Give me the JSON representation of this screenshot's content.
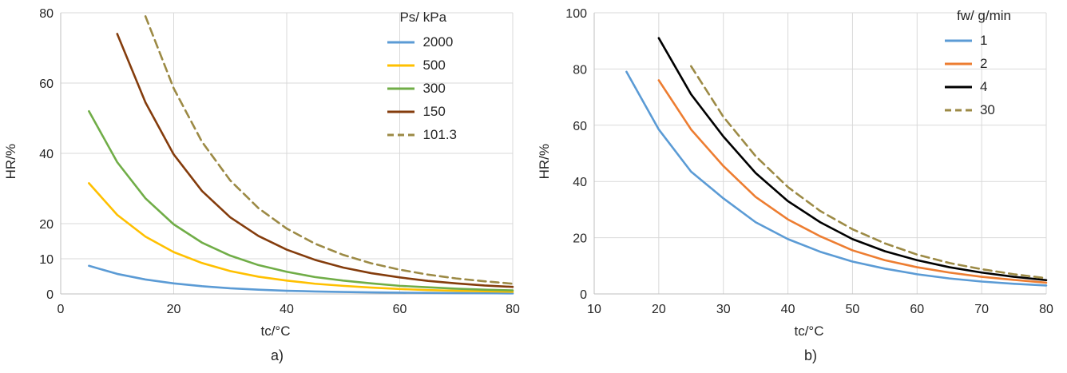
{
  "figure": {
    "background": "#ffffff",
    "text_color": "#262626",
    "axis_color": "#BFBFBF",
    "grid_color": "#D9D9D9"
  },
  "chart_data": [
    {
      "type": "line",
      "caption": "a)",
      "xlabel": "tc/°C",
      "ylabel": "HR/%",
      "xlim": [
        0,
        80
      ],
      "ylim": [
        0,
        80
      ],
      "xticks": [
        0,
        20,
        40,
        60,
        80
      ],
      "yticks": [
        0,
        10,
        20,
        40,
        60,
        80
      ],
      "grid": "on",
      "legend_title": "Ps/ kPa",
      "legend_position": "top-right",
      "series": [
        {
          "name": "2000",
          "color": "#5B9BD5",
          "dash": false,
          "points": [
            [
              5,
              8
            ],
            [
              10,
              5.7
            ],
            [
              15,
              4.1
            ],
            [
              20,
              3
            ],
            [
              25,
              2.2
            ],
            [
              30,
              1.6
            ],
            [
              35,
              1.2
            ],
            [
              40,
              0.9
            ],
            [
              45,
              0.7
            ],
            [
              50,
              0.55
            ],
            [
              55,
              0.45
            ],
            [
              60,
              0.35
            ],
            [
              65,
              0.3
            ],
            [
              70,
              0.25
            ],
            [
              75,
              0.2
            ],
            [
              80,
              0.15
            ]
          ]
        },
        {
          "name": "500",
          "color": "#FFC000",
          "dash": false,
          "points": [
            [
              5,
              31.5
            ],
            [
              10,
              22.5
            ],
            [
              15,
              16.3
            ],
            [
              20,
              11.9
            ],
            [
              25,
              8.8
            ],
            [
              30,
              6.5
            ],
            [
              35,
              4.9
            ],
            [
              40,
              3.8
            ],
            [
              45,
              2.9
            ],
            [
              50,
              2.3
            ],
            [
              55,
              1.8
            ],
            [
              60,
              1.4
            ],
            [
              65,
              1.1
            ],
            [
              70,
              0.9
            ],
            [
              75,
              0.75
            ],
            [
              80,
              0.6
            ]
          ]
        },
        {
          "name": "300",
          "color": "#70AD47",
          "dash": false,
          "points": [
            [
              5,
              52
            ],
            [
              10,
              37.5
            ],
            [
              15,
              27.2
            ],
            [
              20,
              19.8
            ],
            [
              25,
              14.6
            ],
            [
              30,
              10.9
            ],
            [
              35,
              8.2
            ],
            [
              40,
              6.3
            ],
            [
              45,
              4.8
            ],
            [
              50,
              3.8
            ],
            [
              55,
              3
            ],
            [
              60,
              2.3
            ],
            [
              65,
              1.9
            ],
            [
              70,
              1.5
            ],
            [
              75,
              1.2
            ],
            [
              80,
              1
            ]
          ]
        },
        {
          "name": "150",
          "color": "#843C0C",
          "dash": false,
          "points": [
            [
              10,
              74
            ],
            [
              15,
              54.5
            ],
            [
              20,
              39.7
            ],
            [
              25,
              29.3
            ],
            [
              30,
              21.8
            ],
            [
              35,
              16.5
            ],
            [
              40,
              12.6
            ],
            [
              45,
              9.7
            ],
            [
              50,
              7.5
            ],
            [
              55,
              5.9
            ],
            [
              60,
              4.7
            ],
            [
              65,
              3.7
            ],
            [
              70,
              3
            ],
            [
              75,
              2.4
            ],
            [
              80,
              2
            ]
          ]
        },
        {
          "name": "101.3",
          "color": "#9C8A45",
          "dash": true,
          "points": [
            [
              15,
              79
            ],
            [
              20,
              58.5
            ],
            [
              25,
              43.3
            ],
            [
              30,
              32.3
            ],
            [
              35,
              24.4
            ],
            [
              40,
              18.6
            ],
            [
              45,
              14.3
            ],
            [
              50,
              11.1
            ],
            [
              55,
              8.7
            ],
            [
              60,
              6.9
            ],
            [
              65,
              5.5
            ],
            [
              70,
              4.4
            ],
            [
              75,
              3.6
            ],
            [
              80,
              2.9
            ]
          ]
        }
      ]
    },
    {
      "type": "line",
      "caption": "b)",
      "xlabel": "tc/°C",
      "ylabel": "HR/%",
      "xlim": [
        10,
        80
      ],
      "ylim": [
        0,
        100
      ],
      "xticks": [
        10,
        20,
        30,
        40,
        50,
        60,
        70,
        80
      ],
      "yticks": [
        0,
        20,
        40,
        60,
        80,
        100
      ],
      "grid": "on",
      "legend_title": "fw/ g/min",
      "legend_position": "top-right",
      "series": [
        {
          "name": "1",
          "color": "#5B9BD5",
          "dash": false,
          "points": [
            [
              15,
              79
            ],
            [
              20,
              58.5
            ],
            [
              25,
              43.5
            ],
            [
              30,
              34
            ],
            [
              35,
              25.5
            ],
            [
              40,
              19.5
            ],
            [
              45,
              15
            ],
            [
              50,
              11.5
            ],
            [
              55,
              9
            ],
            [
              60,
              7
            ],
            [
              65,
              5.5
            ],
            [
              70,
              4.4
            ],
            [
              75,
              3.6
            ],
            [
              80,
              3
            ]
          ]
        },
        {
          "name": "2",
          "color": "#ED7D31",
          "dash": false,
          "points": [
            [
              20,
              76
            ],
            [
              25,
              58.5
            ],
            [
              30,
              45.5
            ],
            [
              35,
              34.5
            ],
            [
              40,
              26.5
            ],
            [
              45,
              20.5
            ],
            [
              50,
              15.5
            ],
            [
              55,
              12
            ],
            [
              60,
              9.5
            ],
            [
              65,
              7.6
            ],
            [
              70,
              6.1
            ],
            [
              75,
              5
            ],
            [
              80,
              4
            ]
          ]
        },
        {
          "name": "4",
          "color": "#000000",
          "dash": false,
          "points": [
            [
              20,
              91
            ],
            [
              25,
              71
            ],
            [
              30,
              56
            ],
            [
              35,
              43
            ],
            [
              40,
              33
            ],
            [
              45,
              25.5
            ],
            [
              50,
              19.5
            ],
            [
              55,
              15.2
            ],
            [
              60,
              12
            ],
            [
              65,
              9.5
            ],
            [
              70,
              7.6
            ],
            [
              75,
              6.1
            ],
            [
              80,
              4.9
            ]
          ]
        },
        {
          "name": "30",
          "color": "#9C8A45",
          "dash": true,
          "points": [
            [
              25,
              81
            ],
            [
              30,
              63
            ],
            [
              35,
              49
            ],
            [
              40,
              38
            ],
            [
              45,
              29.5
            ],
            [
              50,
              23
            ],
            [
              55,
              18
            ],
            [
              60,
              14
            ],
            [
              65,
              11
            ],
            [
              70,
              8.8
            ],
            [
              75,
              7
            ],
            [
              80,
              5.6
            ]
          ]
        }
      ]
    }
  ]
}
